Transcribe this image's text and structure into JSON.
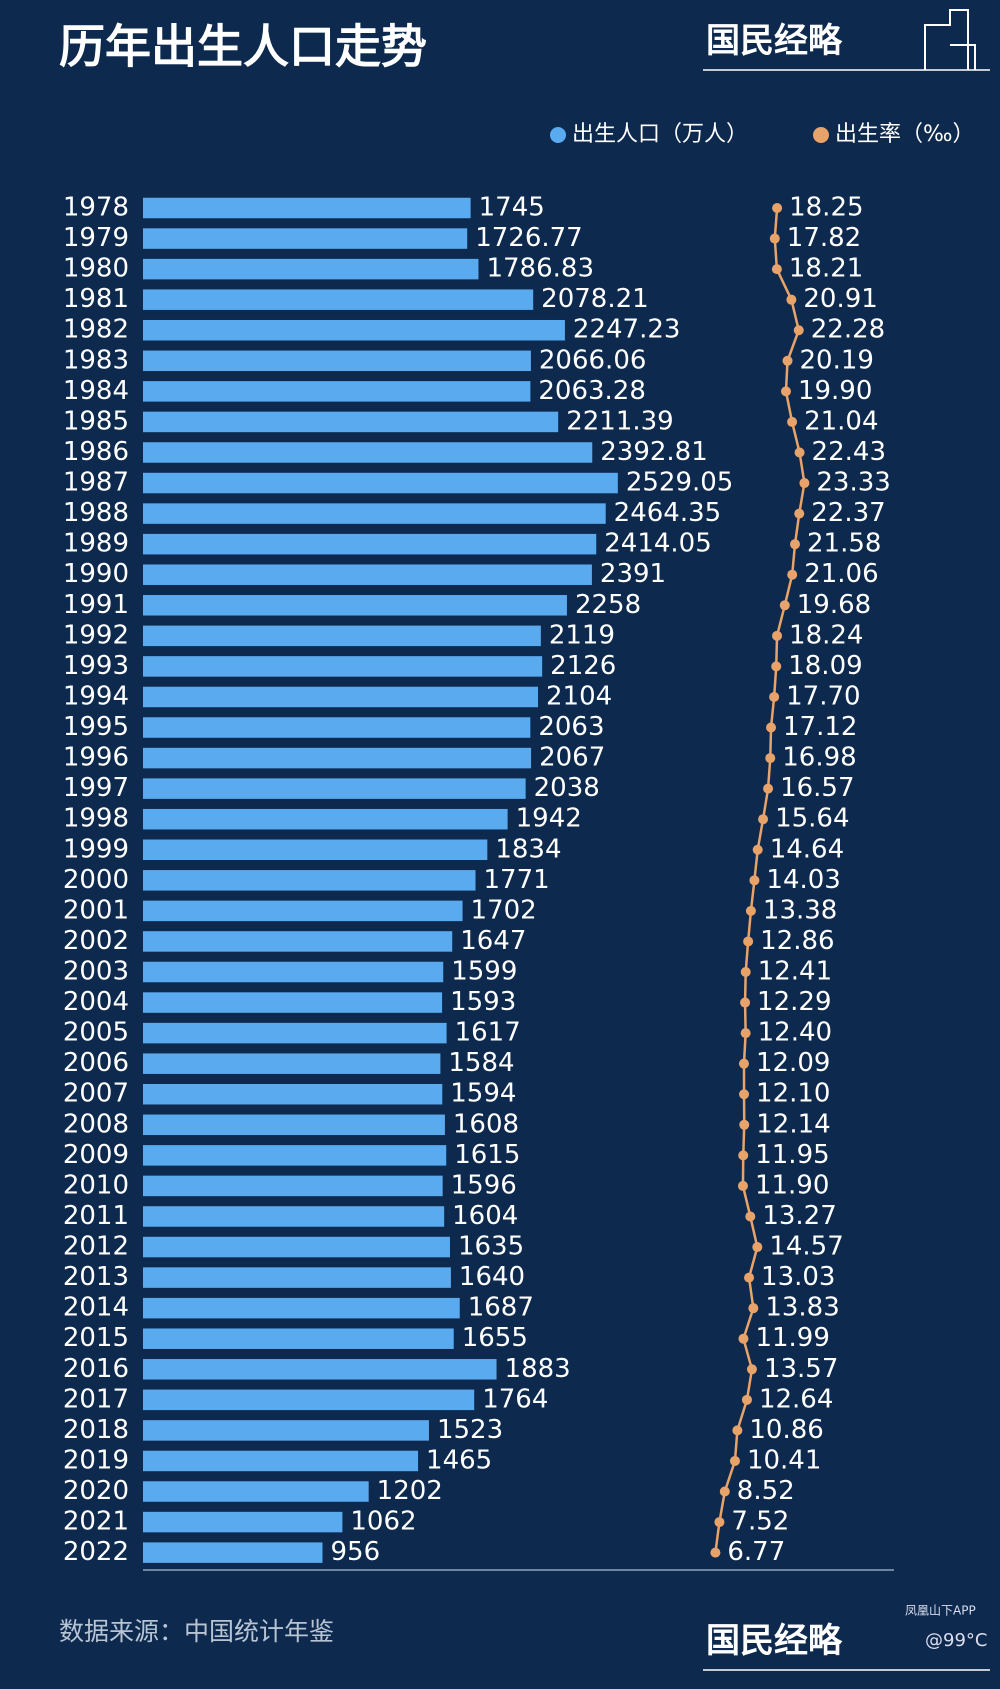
{
  "chart_data": {
    "type": "bar-line",
    "title": "历年出生人口走势",
    "brand": "国民经略",
    "source": "数据来源：中国统计年鉴",
    "annotations": [
      "凤凰山下APP",
      "@99°C"
    ],
    "categories": [
      "1978",
      "1979",
      "1980",
      "1981",
      "1982",
      "1983",
      "1984",
      "1985",
      "1986",
      "1987",
      "1988",
      "1989",
      "1990",
      "1991",
      "1992",
      "1993",
      "1994",
      "1995",
      "1996",
      "1997",
      "1998",
      "1999",
      "2000",
      "2001",
      "2002",
      "2003",
      "2004",
      "2005",
      "2006",
      "2007",
      "2008",
      "2009",
      "2010",
      "2011",
      "2012",
      "2013",
      "2014",
      "2015",
      "2016",
      "2017",
      "2018",
      "2019",
      "2020",
      "2021",
      "2022"
    ],
    "series": [
      {
        "name": "出生人口（万人）",
        "color": "#5aaaf0",
        "values": [
          1745,
          1726.77,
          1786.83,
          2078.21,
          2247.23,
          2066.06,
          2063.28,
          2211.39,
          2392.81,
          2529.05,
          2464.35,
          2414.05,
          2391,
          2258,
          2119,
          2126,
          2104,
          2063,
          2067,
          2038,
          1942,
          1834,
          1771,
          1702,
          1647,
          1599,
          1593,
          1617,
          1584,
          1594,
          1608,
          1615,
          1596,
          1604,
          1635,
          1640,
          1687,
          1655,
          1883,
          1764,
          1523,
          1465,
          1202,
          1062,
          956
        ]
      },
      {
        "name": "出生率（‰）",
        "color": "#e8a36a",
        "axis": "x2",
        "values": [
          18.25,
          17.82,
          18.21,
          20.91,
          22.28,
          20.19,
          19.9,
          21.04,
          22.43,
          23.33,
          22.37,
          21.58,
          21.06,
          19.68,
          18.24,
          18.09,
          17.7,
          17.12,
          16.98,
          16.57,
          15.64,
          14.64,
          14.03,
          13.38,
          12.86,
          12.41,
          12.29,
          12.4,
          12.09,
          12.1,
          12.14,
          11.95,
          11.9,
          13.27,
          14.57,
          13.03,
          13.83,
          11.99,
          13.57,
          12.64,
          10.86,
          10.41,
          8.52,
          7.52,
          6.77
        ],
        "value_labels": [
          "18.25",
          "17.82",
          "18.21",
          "20.91",
          "22.28",
          "20.19",
          "19.90",
          "21.04",
          "22.43",
          "23.33",
          "22.37",
          "21.58",
          "21.06",
          "19.68",
          "18.24",
          "18.09",
          "17.70",
          "17.12",
          "16.98",
          "16.57",
          "15.64",
          "14.64",
          "14.03",
          "13.38",
          "12.86",
          "12.41",
          "12.29",
          "12.40",
          "12.09",
          "12.10",
          "12.14",
          "11.95",
          "11.90",
          "13.27",
          "14.57",
          "13.03",
          "13.83",
          "11.99",
          "13.57",
          "12.64",
          "10.86",
          "10.41",
          "8.52",
          "7.52",
          "6.77"
        ]
      }
    ],
    "xlim": [
      0,
      4000
    ],
    "x2lim": [
      0,
      40
    ],
    "legend": "top-right"
  }
}
